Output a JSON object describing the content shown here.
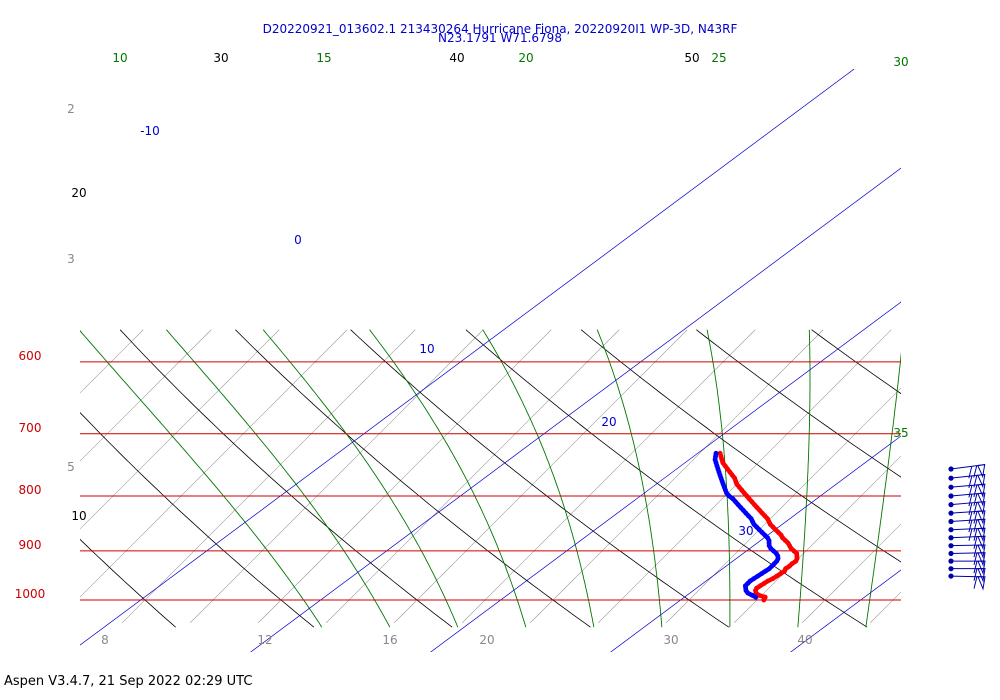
{
  "title_line1": "D20220921_013602.1 213430264 Hurricane Fiona, 20220920I1 WP-3D, N43RF",
  "title_line2": "N23.1791 W71.6798",
  "footer": "Aspen V3.4.7, 21 Sep 2022  02:29 UTC",
  "colors": {
    "isobar": "#cc0000",
    "isotherm": "#000000",
    "dry_adiabat": "#000000",
    "moist_adiabat": "#007700",
    "mixing_ratio": "#888888",
    "thetae_line": "#0000cc",
    "temperature": "#ff0000",
    "dewpoint": "#0000ff",
    "wind_barb": "#0000aa"
  },
  "chart_data": {
    "type": "skew-t",
    "pressure_axis_labels": [
      "600",
      "700",
      "800",
      "900",
      "1000"
    ],
    "isotherm_labels": [
      "30",
      "40",
      "50",
      "20",
      "10"
    ],
    "moist_adiabat_labels": [
      "10",
      "15",
      "20",
      "25",
      "30",
      "35"
    ],
    "blue_line_labels": [
      "-10",
      "0",
      "10",
      "20",
      "30"
    ],
    "mixing_ratio_labels": [
      "2",
      "3",
      "5",
      "8",
      "12",
      "16",
      "20",
      "30",
      "40"
    ],
    "series": [
      {
        "name": "temperature",
        "points": [
          [
            1000,
            25.5
          ],
          [
            994,
            25.4
          ],
          [
            990,
            24.8
          ],
          [
            985,
            24.4
          ],
          [
            980,
            24.2
          ],
          [
            975,
            24.1
          ],
          [
            970,
            24.2
          ],
          [
            965,
            24.3
          ],
          [
            960,
            24.4
          ],
          [
            955,
            24.6
          ],
          [
            950,
            24.7
          ],
          [
            945,
            24.8
          ],
          [
            940,
            24.9
          ],
          [
            935,
            24.8
          ],
          [
            930,
            24.9
          ],
          [
            925,
            24.9
          ],
          [
            920,
            25.0
          ],
          [
            915,
            24.9
          ],
          [
            910,
            24.7
          ],
          [
            905,
            24.5
          ],
          [
            900,
            24.1
          ],
          [
            895,
            23.7
          ],
          [
            890,
            23.4
          ],
          [
            885,
            23.1
          ],
          [
            880,
            22.7
          ],
          [
            875,
            22.3
          ],
          [
            870,
            22.0
          ],
          [
            865,
            21.6
          ],
          [
            860,
            21.2
          ],
          [
            855,
            20.8
          ],
          [
            850,
            20.4
          ],
          [
            845,
            20.1
          ],
          [
            840,
            19.8
          ],
          [
            835,
            19.4
          ],
          [
            830,
            19.0
          ],
          [
            825,
            18.6
          ],
          [
            820,
            18.2
          ],
          [
            815,
            17.8
          ],
          [
            810,
            17.4
          ],
          [
            805,
            17.0
          ],
          [
            800,
            16.6
          ],
          [
            795,
            16.2
          ],
          [
            790,
            15.8
          ],
          [
            785,
            15.4
          ],
          [
            780,
            15.0
          ],
          [
            775,
            14.7
          ],
          [
            770,
            14.4
          ],
          [
            765,
            14.0
          ],
          [
            760,
            13.6
          ],
          [
            755,
            13.2
          ],
          [
            750,
            12.8
          ],
          [
            745,
            12.4
          ],
          [
            740,
            12.1
          ],
          [
            735,
            11.8
          ],
          [
            730,
            11.5
          ]
        ]
      },
      {
        "name": "dewpoint",
        "points": [
          [
            994,
            24.7
          ],
          [
            990,
            24.3
          ],
          [
            985,
            23.8
          ],
          [
            980,
            23.5
          ],
          [
            975,
            23.3
          ],
          [
            970,
            23.1
          ],
          [
            965,
            23.1
          ],
          [
            960,
            23.1
          ],
          [
            955,
            23.2
          ],
          [
            950,
            23.3
          ],
          [
            945,
            23.4
          ],
          [
            940,
            23.5
          ],
          [
            935,
            23.6
          ],
          [
            930,
            23.6
          ],
          [
            925,
            23.6
          ],
          [
            920,
            23.6
          ],
          [
            915,
            23.5
          ],
          [
            910,
            23.3
          ],
          [
            905,
            23.0
          ],
          [
            900,
            22.6
          ],
          [
            895,
            22.2
          ],
          [
            890,
            21.9
          ],
          [
            885,
            21.7
          ],
          [
            880,
            21.5
          ],
          [
            875,
            21.2
          ],
          [
            870,
            20.8
          ],
          [
            865,
            20.4
          ],
          [
            860,
            20.0
          ],
          [
            855,
            19.6
          ],
          [
            850,
            19.2
          ],
          [
            845,
            18.9
          ],
          [
            840,
            18.6
          ],
          [
            835,
            18.2
          ],
          [
            830,
            17.8
          ],
          [
            825,
            17.4
          ],
          [
            820,
            17.0
          ],
          [
            815,
            16.6
          ],
          [
            810,
            16.2
          ],
          [
            805,
            15.8
          ],
          [
            800,
            15.3
          ],
          [
            795,
            14.9
          ],
          [
            790,
            14.6
          ],
          [
            785,
            14.3
          ],
          [
            780,
            14.0
          ],
          [
            775,
            13.7
          ],
          [
            770,
            13.4
          ],
          [
            765,
            13.1
          ],
          [
            760,
            12.8
          ],
          [
            755,
            12.5
          ],
          [
            750,
            12.2
          ],
          [
            745,
            11.9
          ],
          [
            740,
            11.6
          ],
          [
            735,
            11.4
          ],
          [
            730,
            11.2
          ]
        ]
      }
    ],
    "wind_barbs": [
      {
        "pressure": 755,
        "speed_kt": 70,
        "dir": 120
      },
      {
        "pressure": 770,
        "speed_kt": 70,
        "dir": 115
      },
      {
        "pressure": 785,
        "speed_kt": 70,
        "dir": 110
      },
      {
        "pressure": 800,
        "speed_kt": 70,
        "dir": 110
      },
      {
        "pressure": 815,
        "speed_kt": 70,
        "dir": 110
      },
      {
        "pressure": 830,
        "speed_kt": 70,
        "dir": 105
      },
      {
        "pressure": 845,
        "speed_kt": 65,
        "dir": 105
      },
      {
        "pressure": 860,
        "speed_kt": 65,
        "dir": 100
      },
      {
        "pressure": 875,
        "speed_kt": 60,
        "dir": 100
      },
      {
        "pressure": 890,
        "speed_kt": 55,
        "dir": 95
      },
      {
        "pressure": 905,
        "speed_kt": 60,
        "dir": 95
      },
      {
        "pressure": 920,
        "speed_kt": 60,
        "dir": 90
      },
      {
        "pressure": 935,
        "speed_kt": 60,
        "dir": 90
      },
      {
        "pressure": 950,
        "speed_kt": 55,
        "dir": 85
      }
    ]
  }
}
